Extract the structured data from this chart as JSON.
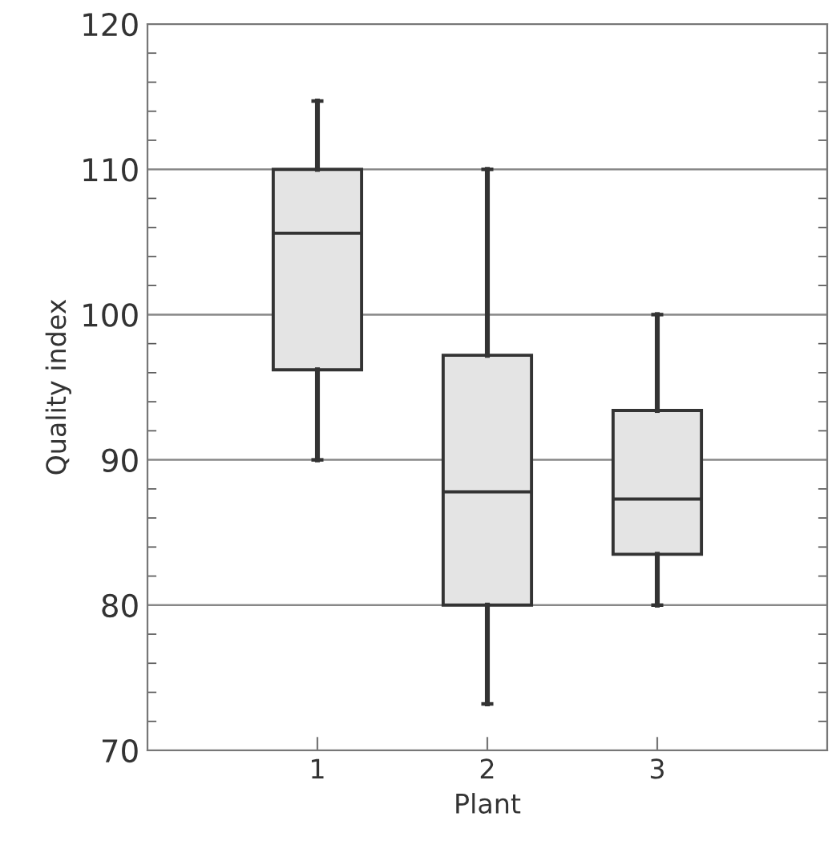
{
  "chart_data": {
    "type": "box",
    "xlabel": "Plant",
    "ylabel": "Quality index",
    "categories": [
      "1",
      "2",
      "3"
    ],
    "boxes": [
      {
        "low": 90,
        "q1": 96.2,
        "median": 105.6,
        "q3": 110,
        "high": 114.7
      },
      {
        "low": 73.2,
        "q1": 80,
        "median": 87.8,
        "q3": 97.2,
        "high": 110
      },
      {
        "low": 80,
        "q1": 83.5,
        "median": 87.3,
        "q3": 93.4,
        "high": 100
      }
    ],
    "color": "#e4e4e4",
    "ylim": [
      70,
      120
    ],
    "yticks": [
      70,
      80,
      90,
      100,
      110,
      120
    ],
    "grid": "y"
  }
}
